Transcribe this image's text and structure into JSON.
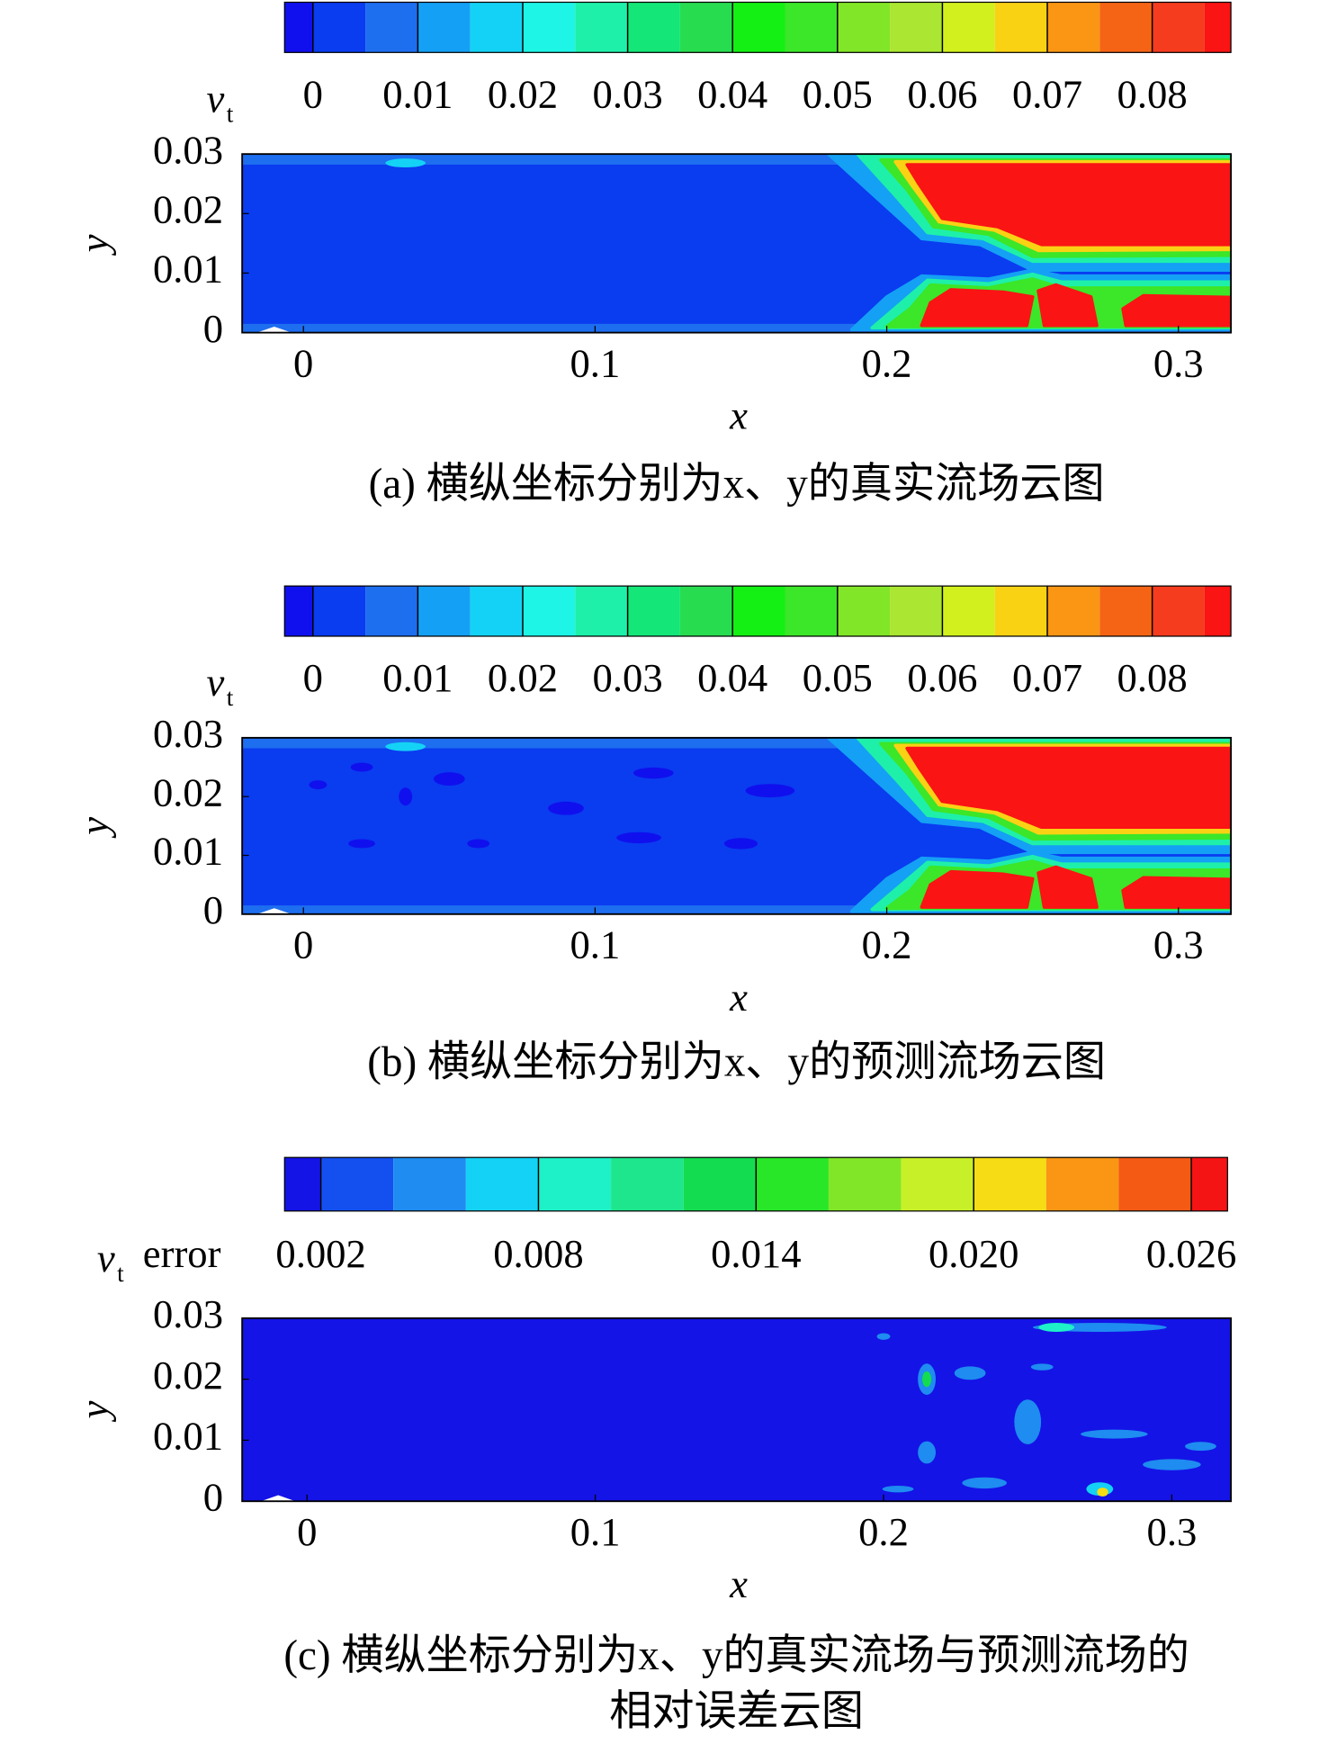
{
  "chart_data": [
    {
      "type": "contour",
      "colorbar": {
        "label": "v",
        "label_sub": "t",
        "boundaries": [
          -0.0027,
          0,
          0.005,
          0.01,
          0.015,
          0.02,
          0.025,
          0.03,
          0.035,
          0.04,
          0.045,
          0.05,
          0.055,
          0.06,
          0.065,
          0.07,
          0.075,
          0.08,
          0.085,
          0.0875
        ],
        "colors": [
          "#1010ee",
          "#0a3cf0",
          "#1e6ef0",
          "#14a0f5",
          "#14d2f5",
          "#1ef5e6",
          "#1ef0aa",
          "#14e678",
          "#28dc50",
          "#14f014",
          "#3ce628",
          "#82e628",
          "#aae632",
          "#d2f01e",
          "#fad214",
          "#fa9614",
          "#f56414",
          "#f53c1e",
          "#fa1414"
        ],
        "ticks": [
          0,
          0.01,
          0.02,
          0.03,
          0.04,
          0.05,
          0.06,
          0.07,
          0.08
        ]
      },
      "xlabel": "x",
      "ylabel": "y",
      "xlim": [
        -0.021,
        0.318
      ],
      "ylim": [
        0,
        0.03
      ],
      "xticks": [
        0,
        0.1,
        0.2,
        0.3
      ],
      "yticks": [
        0,
        0.01,
        0.02,
        0.03
      ],
      "caption": [
        "(a) 横纵坐标分别为x、y的真实流场云图"
      ]
    },
    {
      "type": "contour",
      "colorbar": {
        "label": "v",
        "label_sub": "t",
        "boundaries": [
          -0.0027,
          0,
          0.005,
          0.01,
          0.015,
          0.02,
          0.025,
          0.03,
          0.035,
          0.04,
          0.045,
          0.05,
          0.055,
          0.06,
          0.065,
          0.07,
          0.075,
          0.08,
          0.085,
          0.0875
        ],
        "colors": [
          "#1010ee",
          "#0a3cf0",
          "#1e6ef0",
          "#14a0f5",
          "#14d2f5",
          "#1ef5e6",
          "#1ef0aa",
          "#14e678",
          "#28dc50",
          "#14f014",
          "#3ce628",
          "#82e628",
          "#aae632",
          "#d2f01e",
          "#fad214",
          "#fa9614",
          "#f56414",
          "#f53c1e",
          "#fa1414"
        ],
        "ticks": [
          0,
          0.01,
          0.02,
          0.03,
          0.04,
          0.05,
          0.06,
          0.07,
          0.08
        ]
      },
      "xlabel": "x",
      "ylabel": "y",
      "xlim": [
        -0.021,
        0.318
      ],
      "ylim": [
        0,
        0.03
      ],
      "xticks": [
        0,
        0.1,
        0.2,
        0.3
      ],
      "yticks": [
        0,
        0.01,
        0.02,
        0.03
      ],
      "caption": [
        "(b) 横纵坐标分别为x、y的预测流场云图"
      ]
    },
    {
      "type": "contour",
      "colorbar": {
        "label": "v",
        "label_sub": "t",
        "label_suffix": "error",
        "boundaries": [
          0.001,
          0.002,
          0.004,
          0.006,
          0.008,
          0.01,
          0.012,
          0.014,
          0.016,
          0.018,
          0.02,
          0.022,
          0.024,
          0.026,
          0.027
        ],
        "colors": [
          "#1414e6",
          "#1450f0",
          "#1e8cf0",
          "#14d2f5",
          "#1ef0c8",
          "#1ee68c",
          "#14dc50",
          "#28e628",
          "#82e628",
          "#c8f028",
          "#f5dc14",
          "#fa9614",
          "#f55a14",
          "#f51414"
        ],
        "ticks": [
          0.002,
          0.008,
          0.014,
          {
            "value": 0.02,
            "label": "0.020"
          },
          0.026
        ]
      },
      "xlabel": "x",
      "ylabel": "y",
      "xlim": [
        -0.0225,
        0.3205
      ],
      "ylim": [
        0,
        0.03
      ],
      "xticks": [
        0,
        0.1,
        0.2,
        0.3
      ],
      "yticks": [
        0,
        0.01,
        0.02,
        0.03
      ],
      "caption": [
        "(c) 横纵坐标分别为x、y的真实流场与预测流场的",
        "相对误差云图"
      ]
    }
  ]
}
